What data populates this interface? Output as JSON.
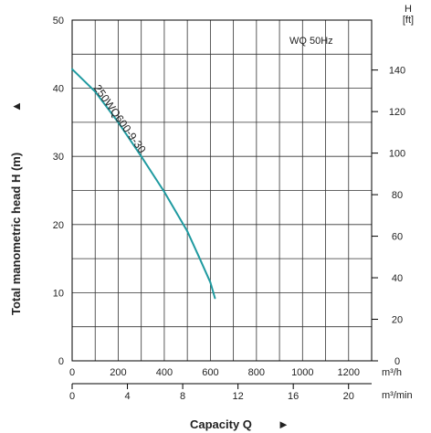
{
  "chart_data": {
    "type": "line",
    "annotation": "WQ  50Hz",
    "ylabel": "Total manometric head H (m)",
    "xlabel": "Capacity Q",
    "left_axis": {
      "range": [
        0,
        50
      ],
      "ticks": [
        0,
        10,
        20,
        30,
        40,
        50
      ]
    },
    "right_axis": {
      "label_line1": "H",
      "label_line2": "[ft]",
      "range_ft": [
        0,
        164.04
      ],
      "ticks": [
        0,
        20,
        40,
        60,
        80,
        100,
        120,
        140
      ]
    },
    "x_axis_m3h": {
      "unit": "m³/h",
      "range": [
        0,
        1300
      ],
      "ticks": [
        0,
        200,
        400,
        600,
        800,
        1000,
        1200
      ]
    },
    "x_axis_m3min": {
      "unit": "m³/min",
      "range": [
        0,
        21.67
      ],
      "ticks": [
        0,
        4,
        8,
        12,
        16,
        20
      ]
    },
    "series": [
      {
        "name": "250WQ600-9-30",
        "color": "#1f9aa0",
        "x": [
          0,
          100,
          200,
          300,
          400,
          500,
          550,
          600,
          620
        ],
        "y": [
          42.8,
          39.5,
          35.0,
          30.0,
          24.8,
          19.0,
          15.3,
          11.5,
          9.2
        ]
      }
    ],
    "grid": true,
    "arrow_glyph": "►",
    "ylabel_arrow_glyph": "▲"
  }
}
